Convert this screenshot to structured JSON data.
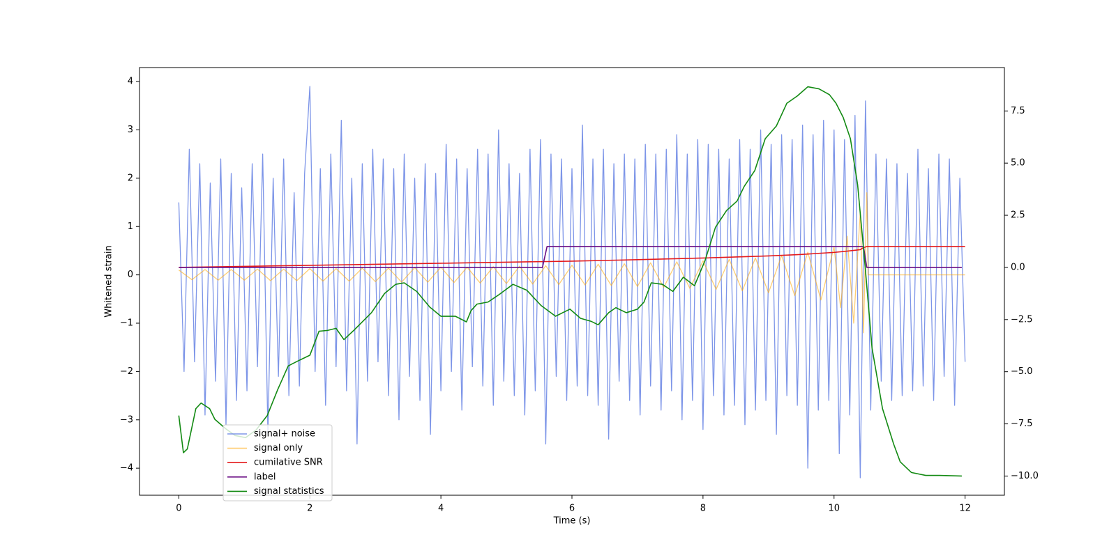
{
  "chart_data": {
    "type": "line",
    "xlabel": "Time (s)",
    "ylabel": "Whitened strain",
    "xlim": [
      -0.6,
      12.6
    ],
    "ylim": [
      -4.56,
      4.29
    ],
    "y2lim": [
      -10.92,
      9.58
    ],
    "xticks": [
      0,
      2,
      4,
      6,
      8,
      10,
      12
    ],
    "yticks": [
      {
        "value": -4,
        "label": "−4"
      },
      {
        "value": -3,
        "label": "−3"
      },
      {
        "value": -2,
        "label": "−2"
      },
      {
        "value": -1,
        "label": "−1"
      },
      0,
      1,
      2,
      3,
      4
    ],
    "y2ticks": [
      {
        "value": -10,
        "label": "−10.0"
      },
      {
        "value": -7.5,
        "label": "−7.5"
      },
      {
        "value": -5,
        "label": "−5.0"
      },
      {
        "value": -2.5,
        "label": "−2.5"
      },
      {
        "value": 0,
        "label": "0.0"
      },
      {
        "value": 2.5,
        "label": "2.5"
      },
      {
        "value": 5,
        "label": "5.0"
      },
      {
        "value": 7.5,
        "label": "7.5"
      }
    ],
    "legend": "lower left",
    "series": [
      {
        "name": "signal+ noise",
        "color": "#6f8ae6",
        "x": [
          0,
          0.08,
          0.16,
          0.24,
          0.32,
          0.4,
          0.48,
          0.56,
          0.64,
          0.72,
          0.8,
          0.88,
          0.96,
          1.04,
          1.12,
          1.2,
          1.28,
          1.36,
          1.44,
          1.52,
          1.6,
          1.68,
          1.76,
          1.84,
          1.92,
          2,
          2.08,
          2.16,
          2.24,
          2.32,
          2.4,
          2.48,
          2.56,
          2.64,
          2.72,
          2.8,
          2.88,
          2.96,
          3.04,
          3.12,
          3.2,
          3.28,
          3.36,
          3.44,
          3.52,
          3.6,
          3.68,
          3.76,
          3.84,
          3.92,
          4,
          4.08,
          4.16,
          4.24,
          4.32,
          4.4,
          4.48,
          4.56,
          4.64,
          4.72,
          4.8,
          4.88,
          4.96,
          5.04,
          5.12,
          5.2,
          5.28,
          5.36,
          5.44,
          5.52,
          5.6,
          5.68,
          5.76,
          5.84,
          5.92,
          6,
          6.08,
          6.16,
          6.24,
          6.32,
          6.4,
          6.48,
          6.56,
          6.64,
          6.72,
          6.8,
          6.88,
          6.96,
          7.04,
          7.12,
          7.2,
          7.28,
          7.36,
          7.44,
          7.52,
          7.6,
          7.68,
          7.76,
          7.84,
          7.92,
          8,
          8.08,
          8.16,
          8.24,
          8.32,
          8.4,
          8.48,
          8.56,
          8.64,
          8.72,
          8.8,
          8.88,
          8.96,
          9.04,
          9.12,
          9.2,
          9.28,
          9.36,
          9.44,
          9.52,
          9.6,
          9.68,
          9.76,
          9.84,
          9.92,
          10,
          10.08,
          10.16,
          10.24,
          10.32,
          10.4,
          10.48,
          10.56,
          10.64,
          10.72,
          10.8,
          10.88,
          10.96,
          11.04,
          11.12,
          11.2,
          11.28,
          11.36,
          11.44,
          11.52,
          11.6,
          11.68,
          11.76,
          11.84,
          11.92,
          12
        ],
        "values": [
          1.5,
          -2.0,
          2.6,
          -1.8,
          2.3,
          -2.9,
          1.9,
          -2.2,
          2.4,
          -3.1,
          2.1,
          -2.6,
          1.8,
          -2.4,
          2.3,
          -1.9,
          2.5,
          -3.3,
          2.0,
          -2.1,
          2.4,
          -2.5,
          1.7,
          -2.3,
          2.1,
          3.9,
          -2.0,
          2.2,
          -2.7,
          2.5,
          -1.9,
          3.2,
          -2.4,
          2.0,
          -3.5,
          2.3,
          -2.2,
          2.6,
          -1.8,
          2.4,
          -2.5,
          2.2,
          -3.0,
          2.5,
          -2.1,
          2.0,
          -2.6,
          2.3,
          -3.3,
          2.1,
          -2.4,
          2.7,
          -2.0,
          2.4,
          -2.8,
          2.2,
          -1.9,
          2.6,
          -2.3,
          2.5,
          -2.7,
          3.0,
          -2.2,
          2.3,
          -2.5,
          2.1,
          -2.9,
          2.6,
          -2.4,
          2.8,
          -3.5,
          2.5,
          -2.1,
          2.4,
          -2.6,
          2.2,
          -2.3,
          3.1,
          -2.5,
          2.4,
          -2.7,
          2.6,
          -3.4,
          2.3,
          -2.2,
          2.5,
          -2.6,
          2.4,
          -2.9,
          2.7,
          -2.3,
          2.5,
          -2.8,
          2.6,
          -2.4,
          2.9,
          -3.0,
          2.5,
          -2.6,
          2.8,
          -3.2,
          2.7,
          -2.5,
          2.6,
          -2.9,
          2.4,
          -2.7,
          2.8,
          -3.1,
          2.6,
          -2.8,
          3.0,
          -2.6,
          2.7,
          -3.3,
          2.9,
          -2.5,
          2.8,
          -2.7,
          3.1,
          -4.0,
          2.9,
          -2.8,
          3.2,
          -2.6,
          3.0,
          -3.7,
          2.8,
          -2.9,
          3.3,
          -4.2,
          3.6,
          -2.8,
          2.5,
          -2.2,
          2.4,
          -2.6,
          2.3,
          -2.5,
          2.1,
          -2.4,
          2.6,
          -2.3,
          2.2,
          -2.6,
          2.5,
          -2.1,
          2.4,
          -2.7,
          2.0,
          -1.8
        ]
      },
      {
        "name": "signal only",
        "color": "#ffa500",
        "x": [
          0,
          0.2,
          0.4,
          0.6,
          0.8,
          1,
          1.2,
          1.4,
          1.6,
          1.8,
          2,
          2.2,
          2.4,
          2.6,
          2.8,
          3,
          3.2,
          3.4,
          3.6,
          3.8,
          4,
          4.2,
          4.4,
          4.6,
          4.8,
          5,
          5.2,
          5.4,
          5.6,
          5.8,
          6,
          6.2,
          6.4,
          6.6,
          6.8,
          7,
          7.2,
          7.4,
          7.6,
          7.8,
          8,
          8.2,
          8.4,
          8.6,
          8.8,
          9,
          9.2,
          9.4,
          9.6,
          9.8,
          10,
          10.1,
          10.2,
          10.3,
          10.4,
          10.45,
          10.5,
          10.52,
          12
        ],
        "values": [
          0.1,
          -0.1,
          0.11,
          -0.11,
          0.11,
          -0.11,
          0.12,
          -0.12,
          0.12,
          -0.12,
          0.13,
          -0.13,
          0.13,
          -0.13,
          0.14,
          -0.14,
          0.14,
          -0.15,
          0.15,
          -0.15,
          0.16,
          -0.16,
          0.16,
          -0.17,
          0.17,
          -0.18,
          0.18,
          -0.19,
          0.19,
          -0.2,
          0.2,
          -0.21,
          0.22,
          -0.22,
          0.23,
          -0.24,
          0.25,
          -0.26,
          0.27,
          -0.28,
          0.29,
          -0.3,
          0.32,
          -0.33,
          0.35,
          -0.37,
          0.4,
          -0.43,
          0.47,
          -0.52,
          0.58,
          -0.68,
          0.8,
          -1.0,
          1.3,
          -1.2,
          1.7,
          0,
          0
        ]
      },
      {
        "name": "cumilative SNR",
        "color": "#e41a1c",
        "axis": "y2",
        "x": [
          0,
          1,
          2,
          3,
          4,
          5,
          6,
          7,
          8,
          9,
          9.5,
          10,
          10.2,
          10.4,
          10.45,
          10.5,
          12
        ],
        "values": [
          0,
          0.05,
          0.1,
          0.15,
          0.2,
          0.25,
          0.3,
          0.37,
          0.45,
          0.55,
          0.62,
          0.72,
          0.78,
          0.85,
          0.95,
          1.0,
          1.0
        ]
      },
      {
        "name": "label",
        "color": "#6a0d83",
        "axis": "y2",
        "x": [
          0,
          5.55,
          5.62,
          10.45,
          10.5,
          11.95
        ],
        "values": [
          0,
          0,
          1,
          1,
          0,
          0
        ]
      },
      {
        "name": "signal statistics",
        "color": "#138a13",
        "axis": "y2",
        "x": [
          0,
          0.07,
          0.13,
          0.26,
          0.34,
          0.47,
          0.55,
          0.71,
          0.86,
          1.02,
          1.18,
          1.35,
          1.51,
          1.67,
          1.84,
          2.0,
          2.14,
          2.27,
          2.4,
          2.52,
          2.67,
          2.81,
          2.94,
          3.14,
          3.31,
          3.44,
          3.63,
          3.83,
          4.0,
          4.22,
          4.39,
          4.46,
          4.55,
          4.72,
          4.88,
          5.1,
          5.31,
          5.53,
          5.75,
          5.97,
          6.13,
          6.29,
          6.4,
          6.56,
          6.67,
          6.83,
          7.0,
          7.1,
          7.21,
          7.38,
          7.54,
          7.7,
          7.87,
          8.03,
          8.19,
          8.36,
          8.52,
          8.63,
          8.79,
          8.95,
          9.12,
          9.28,
          9.44,
          9.6,
          9.77,
          9.93,
          10.03,
          10.14,
          10.25,
          10.36,
          10.47,
          10.58,
          10.74,
          10.91,
          11.01,
          11.18,
          11.4,
          11.61,
          11.95
        ],
        "values": [
          -7.1,
          -8.88,
          -8.7,
          -6.77,
          -6.5,
          -6.77,
          -7.28,
          -7.72,
          -8.06,
          -8.16,
          -7.79,
          -7.1,
          -5.85,
          -4.72,
          -4.45,
          -4.21,
          -3.06,
          -3.02,
          -2.92,
          -3.46,
          -3.02,
          -2.58,
          -2.17,
          -1.25,
          -0.81,
          -0.74,
          -1.15,
          -1.9,
          -2.34,
          -2.34,
          -2.61,
          -2.07,
          -1.76,
          -1.66,
          -1.32,
          -0.81,
          -1.09,
          -1.83,
          -2.34,
          -2.0,
          -2.44,
          -2.58,
          -2.75,
          -2.17,
          -1.93,
          -2.17,
          -2.0,
          -1.66,
          -0.74,
          -0.81,
          -1.15,
          -0.47,
          -0.88,
          0.32,
          1.92,
          2.73,
          3.18,
          3.89,
          4.64,
          6.17,
          6.78,
          7.87,
          8.22,
          8.66,
          8.56,
          8.28,
          7.87,
          7.19,
          6.17,
          3.96,
          0.21,
          -3.87,
          -6.77,
          -8.47,
          -9.32,
          -9.83,
          -9.97,
          -9.97,
          -10.0
        ]
      }
    ]
  }
}
